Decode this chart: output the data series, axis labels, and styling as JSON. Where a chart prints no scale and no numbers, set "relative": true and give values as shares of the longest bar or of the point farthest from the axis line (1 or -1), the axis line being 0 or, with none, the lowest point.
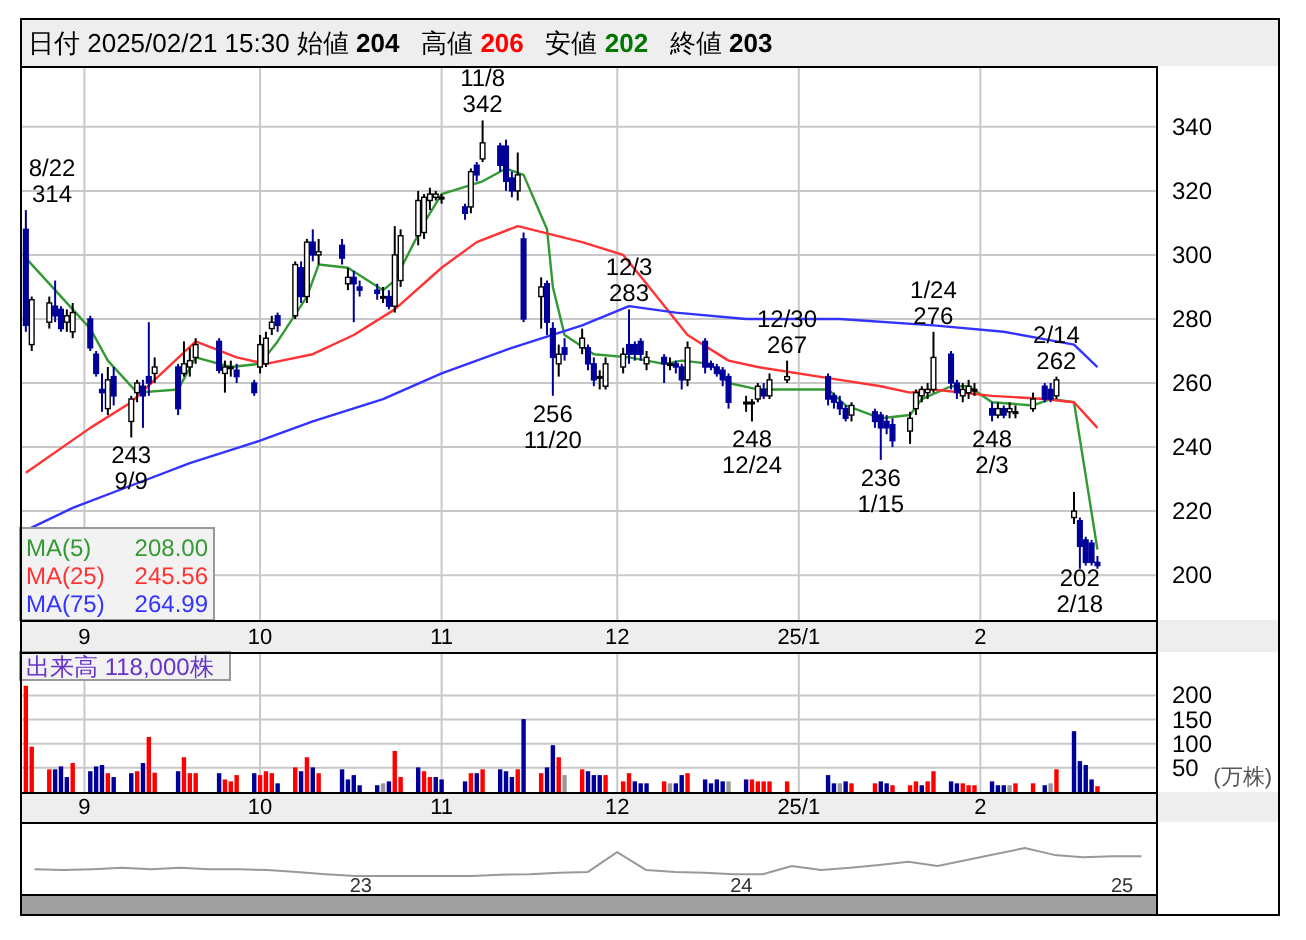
{
  "chart_data": [
    {
      "type": "candlestick",
      "title": "日付 2025/02/21 15:30 始値 **204**   高値 **206**   安値 **202**   終値 **203**",
      "x": [
        "2024-08-22",
        "2024-08-23",
        "2024-08-26",
        "2024-08-27",
        "2024-08-28",
        "2024-08-29",
        "2024-08-30",
        "2024-09-02",
        "2024-09-03",
        "2024-09-04",
        "2024-09-05",
        "2024-09-06",
        "2024-09-09",
        "2024-09-10",
        "2024-09-11",
        "2024-09-12",
        "2024-09-13",
        "2024-09-17",
        "2024-09-18",
        "2024-09-19",
        "2024-09-20",
        "2024-09-24",
        "2024-09-25",
        "2024-09-26",
        "2024-09-27",
        "2024-09-30",
        "2024-10-01",
        "2024-10-02",
        "2024-10-03",
        "2024-10-04",
        "2024-10-07",
        "2024-10-08",
        "2024-10-09",
        "2024-10-10",
        "2024-10-11",
        "2024-10-15",
        "2024-10-16",
        "2024-10-17",
        "2024-10-18",
        "2024-10-21",
        "2024-10-22",
        "2024-10-23",
        "2024-10-24",
        "2024-10-25",
        "2024-10-28",
        "2024-10-29",
        "2024-10-30",
        "2024-10-31",
        "2024-11-01",
        "2024-11-05",
        "2024-11-06",
        "2024-11-07",
        "2024-11-08",
        "2024-11-11",
        "2024-11-12",
        "2024-11-13",
        "2024-11-14",
        "2024-11-15",
        "2024-11-18",
        "2024-11-19",
        "2024-11-20",
        "2024-11-21",
        "2024-11-22",
        "2024-11-25",
        "2024-11-26",
        "2024-11-27",
        "2024-11-28",
        "2024-11-29",
        "2024-12-02",
        "2024-12-03",
        "2024-12-04",
        "2024-12-05",
        "2024-12-06",
        "2024-12-09",
        "2024-12-10",
        "2024-12-11",
        "2024-12-12",
        "2024-12-13",
        "2024-12-16",
        "2024-12-17",
        "2024-12-18",
        "2024-12-19",
        "2024-12-20",
        "2024-12-23",
        "2024-12-24",
        "2024-12-25",
        "2024-12-26",
        "2024-12-27",
        "2024-12-30",
        "2025-01-06",
        "2025-01-07",
        "2025-01-08",
        "2025-01-09",
        "2025-01-10",
        "2025-01-14",
        "2025-01-15",
        "2025-01-16",
        "2025-01-17",
        "2025-01-20",
        "2025-01-21",
        "2025-01-22",
        "2025-01-23",
        "2025-01-24",
        "2025-01-27",
        "2025-01-28",
        "2025-01-29",
        "2025-01-30",
        "2025-01-31",
        "2025-02-03",
        "2025-02-04",
        "2025-02-05",
        "2025-02-06",
        "2025-02-07",
        "2025-02-10",
        "2025-02-12",
        "2025-02-13",
        "2025-02-14",
        "2025-02-17",
        "2025-02-18",
        "2025-02-19",
        "2025-02-20",
        "2025-02-21"
      ],
      "ohlc": [
        [
          308,
          314,
          276,
          278
        ],
        [
          272,
          287,
          270,
          286
        ],
        [
          279,
          287,
          277,
          285
        ],
        [
          284,
          292,
          279,
          281
        ],
        [
          283,
          284,
          276,
          277
        ],
        [
          279,
          283,
          276,
          281
        ],
        [
          276,
          285,
          274,
          282
        ],
        [
          280,
          281,
          270,
          271
        ],
        [
          269,
          270,
          262,
          263
        ],
        [
          258,
          263,
          251,
          257
        ],
        [
          252,
          265,
          250,
          261
        ],
        [
          262,
          265,
          253,
          256
        ],
        [
          248,
          256,
          243,
          255
        ],
        [
          257,
          261,
          254,
          260
        ],
        [
          259,
          261,
          246,
          256
        ],
        [
          262,
          279,
          256,
          260
        ],
        [
          263,
          268,
          260,
          265
        ],
        [
          265,
          266,
          250,
          252
        ],
        [
          263,
          273,
          262,
          266
        ],
        [
          265,
          271,
          262,
          267
        ],
        [
          268,
          274,
          266,
          272
        ],
        [
          273,
          274,
          263,
          264
        ],
        [
          263,
          267,
          257,
          265
        ],
        [
          265,
          267,
          262,
          265
        ],
        [
          264,
          266,
          260,
          262
        ],
        [
          260,
          261,
          256,
          257
        ],
        [
          265,
          275,
          263,
          272
        ],
        [
          266,
          276,
          265,
          274
        ],
        [
          277,
          281,
          275,
          279
        ],
        [
          281,
          282,
          276,
          278
        ],
        [
          281,
          298,
          280,
          297
        ],
        [
          296,
          298,
          285,
          287
        ],
        [
          287,
          305,
          285,
          304
        ],
        [
          304,
          308,
          298,
          300
        ],
        [
          300,
          305,
          297,
          301
        ],
        [
          303,
          305,
          297,
          299
        ],
        [
          291,
          296,
          289,
          293
        ],
        [
          293,
          295,
          279,
          291
        ],
        [
          290,
          292,
          287,
          289
        ],
        [
          289,
          291,
          286,
          288
        ],
        [
          287,
          290,
          285,
          287
        ],
        [
          287,
          289,
          283,
          284
        ],
        [
          284,
          309,
          282,
          300
        ],
        [
          292,
          308,
          290,
          306
        ],
        [
          306,
          320,
          303,
          317
        ],
        [
          307,
          319,
          305,
          318
        ],
        [
          317,
          321,
          314,
          319
        ],
        [
          318,
          320,
          317,
          319
        ],
        [
          318,
          319,
          316,
          318
        ],
        [
          315,
          316,
          311,
          313
        ],
        [
          315,
          327,
          313,
          326
        ],
        [
          328,
          329,
          323,
          325
        ],
        [
          330,
          342,
          329,
          335
        ],
        [
          334,
          335,
          326,
          328
        ],
        [
          334,
          336,
          320,
          323
        ],
        [
          324,
          326,
          318,
          320
        ],
        [
          320,
          332,
          317,
          325
        ],
        [
          305,
          307,
          279,
          280
        ],
        [
          287,
          293,
          277,
          290
        ],
        [
          291,
          292,
          275,
          279
        ],
        [
          277,
          279,
          256,
          268
        ],
        [
          266,
          272,
          262,
          269
        ],
        [
          271,
          274,
          267,
          269
        ],
        [
          271,
          277,
          269,
          274
        ],
        [
          271,
          272,
          264,
          266
        ],
        [
          266,
          268,
          259,
          261
        ],
        [
          262,
          264,
          258,
          262
        ],
        [
          259,
          268,
          258,
          266
        ],
        [
          265,
          271,
          263,
          269
        ],
        [
          272,
          283,
          266,
          269
        ],
        [
          272,
          273,
          267,
          269
        ],
        [
          273,
          274,
          267,
          269
        ],
        [
          266,
          270,
          264,
          268
        ],
        [
          268,
          269,
          260,
          266
        ],
        [
          266,
          268,
          264,
          266
        ],
        [
          266,
          267,
          263,
          265
        ],
        [
          265,
          266,
          258,
          261
        ],
        [
          261,
          273,
          259,
          271
        ],
        [
          273,
          274,
          263,
          265
        ],
        [
          266,
          267,
          264,
          265
        ],
        [
          265,
          266,
          262,
          263
        ],
        [
          264,
          265,
          259,
          261
        ],
        [
          262,
          263,
          252,
          254
        ],
        [
          254,
          256,
          251,
          254
        ],
        [
          254,
          255,
          248,
          254
        ],
        [
          255,
          260,
          254,
          259
        ],
        [
          258,
          260,
          255,
          256
        ],
        [
          256,
          263,
          255,
          261
        ],
        [
          261,
          267,
          260,
          262
        ],
        [
          262,
          263,
          253,
          255
        ],
        [
          256,
          257,
          252,
          254
        ],
        [
          254,
          256,
          250,
          252
        ],
        [
          252,
          253,
          248,
          249
        ],
        [
          250,
          254,
          248,
          253
        ],
        [
          251,
          252,
          246,
          248
        ],
        [
          250,
          251,
          236,
          246
        ],
        [
          248,
          250,
          244,
          246
        ],
        [
          247,
          249,
          240,
          242
        ],
        [
          245,
          251,
          241,
          249
        ],
        [
          252,
          258,
          250,
          257
        ],
        [
          256,
          259,
          254,
          258
        ],
        [
          257,
          260,
          255,
          258
        ],
        [
          258,
          276,
          257,
          268
        ],
        [
          269,
          270,
          258,
          260
        ],
        [
          260,
          261,
          255,
          257
        ],
        [
          256,
          260,
          254,
          258
        ],
        [
          257,
          261,
          255,
          259
        ],
        [
          258,
          260,
          256,
          258
        ],
        [
          252,
          254,
          248,
          250
        ],
        [
          250,
          254,
          249,
          252
        ],
        [
          252,
          253,
          249,
          250
        ],
        [
          251,
          254,
          249,
          252
        ],
        [
          251,
          253,
          249,
          251
        ],
        [
          252,
          257,
          251,
          255
        ],
        [
          259,
          260,
          254,
          255
        ],
        [
          258,
          260,
          254,
          255
        ],
        [
          256,
          262,
          255,
          261
        ],
        [
          218,
          226,
          216,
          220
        ],
        [
          217,
          218,
          202,
          209
        ],
        [
          211,
          212,
          203,
          204
        ],
        [
          210,
          211,
          203,
          204
        ],
        [
          204,
          206,
          202,
          203
        ]
      ],
      "series": [
        {
          "name": "MA(5)",
          "type": "line",
          "color": "#339933",
          "x": [
            "2024-08-22",
            "2024-08-27",
            "2024-09-02",
            "2024-09-05",
            "2024-09-10",
            "2024-09-17",
            "2024-09-20",
            "2024-09-26",
            "2024-10-01",
            "2024-10-04",
            "2024-10-09",
            "2024-10-11",
            "2024-10-16",
            "2024-10-22",
            "2024-10-24",
            "2024-10-29",
            "2024-11-01",
            "2024-11-08",
            "2024-11-12",
            "2024-11-15",
            "2024-11-19",
            "2024-11-20",
            "2024-11-22",
            "2024-11-27",
            "2024-12-03",
            "2024-12-09",
            "2024-12-12",
            "2024-12-17",
            "2024-12-20",
            "2024-12-25",
            "2025-01-06",
            "2025-01-09",
            "2025-01-15",
            "2025-01-20",
            "2025-01-22",
            "2025-01-27",
            "2025-01-30",
            "2025-02-03",
            "2025-02-10",
            "2025-02-13",
            "2025-02-17",
            "2025-02-19",
            "2025-02-21"
          ],
          "values": [
            299,
            289,
            277,
            267,
            257,
            258,
            268,
            265,
            266,
            273,
            287,
            297,
            296,
            289,
            292,
            310,
            319,
            323,
            327,
            325,
            308,
            290,
            275,
            269,
            268,
            266,
            267,
            266,
            260,
            258,
            258,
            253,
            249,
            250,
            255,
            259,
            259,
            254,
            253,
            255,
            254,
            231,
            208
          ]
        },
        {
          "name": "MA(25)",
          "type": "line",
          "color": "#ff3333",
          "x": [
            "2024-08-22",
            "2024-09-02",
            "2024-09-09",
            "2024-09-13",
            "2024-09-20",
            "2024-09-27",
            "2024-10-02",
            "2024-10-10",
            "2024-10-17",
            "2024-10-24",
            "2024-11-01",
            "2024-11-07",
            "2024-11-14",
            "2024-11-25",
            "2024-12-02",
            "2024-12-06",
            "2024-12-13",
            "2024-12-20",
            "2024-12-25",
            "2025-01-08",
            "2025-01-15",
            "2025-01-20",
            "2025-01-24",
            "2025-02-03",
            "2025-02-12",
            "2025-02-17",
            "2025-02-21"
          ],
          "values": [
            232,
            246,
            254,
            261,
            273,
            268,
            266,
            269,
            275,
            283,
            296,
            304,
            309,
            304,
            300,
            291,
            275,
            267,
            265,
            261,
            259,
            257,
            258,
            256,
            255,
            254,
            246
          ]
        },
        {
          "name": "MA(75)",
          "type": "line",
          "color": "#3333ff",
          "x": [
            "2024-08-22",
            "2024-08-30",
            "2024-09-09",
            "2024-09-19",
            "2024-10-01",
            "2024-10-10",
            "2024-10-22",
            "2024-11-01",
            "2024-11-13",
            "2024-11-25",
            "2024-12-03",
            "2024-12-11",
            "2024-12-23",
            "2025-01-08",
            "2025-01-24",
            "2025-02-05",
            "2025-02-17",
            "2025-02-21"
          ],
          "values": [
            214,
            221,
            228,
            235,
            242,
            248,
            255,
            263,
            271,
            278,
            284,
            282,
            280,
            280,
            278,
            276,
            272,
            265
          ]
        }
      ],
      "xlim": [
        "2024-08-21",
        "2025-03-03"
      ],
      "xticks": [
        {
          "value": "2024-09-01",
          "label": "9"
        },
        {
          "value": "2024-10-01",
          "label": "10"
        },
        {
          "value": "2024-11-01",
          "label": "11"
        },
        {
          "value": "2024-12-01",
          "label": "12"
        },
        {
          "value": "2025-01-01",
          "label": "25/1"
        },
        {
          "value": "2025-02-01",
          "label": "2"
        }
      ],
      "ylim": [
        186,
        359
      ],
      "yticks": [
        200,
        220,
        240,
        260,
        280,
        300,
        320,
        340
      ],
      "grid": true,
      "legend": "bottom left",
      "annotations": [
        {
          "text": "8/22 314",
          "x": "2024-08-22",
          "y": 314
        },
        {
          "text": "243 9/9",
          "x": "2024-09-09",
          "y": 243
        },
        {
          "text": "11/8 342",
          "x": "2024-11-08",
          "y": 342
        },
        {
          "text": "256 11/20",
          "x": "2024-11-20",
          "y": 256
        },
        {
          "text": "12/3 283",
          "x": "2024-12-03",
          "y": 283
        },
        {
          "text": "248 12/24",
          "x": "2024-12-24",
          "y": 248
        },
        {
          "text": "12/30 267",
          "x": "2024-12-30",
          "y": 267
        },
        {
          "text": "236 1/15",
          "x": "2025-01-15",
          "y": 236
        },
        {
          "text": "1/24 276",
          "x": "2025-01-24",
          "y": 276
        },
        {
          "text": "248 2/3",
          "x": "2025-02-03",
          "y": 248
        },
        {
          "text": "2/14 262",
          "x": "2025-02-14",
          "y": 262
        },
        {
          "text": "202 2/18",
          "x": "2025-02-18",
          "y": 202
        },
        "208.00",
        "245.56",
        "264.99"
      ]
    },
    {
      "type": "bar",
      "title": "出来高 118,000株",
      "ylabel": "(万株)",
      "x": [
        "2024-08-22",
        "2024-08-23",
        "2024-08-26",
        "2024-08-27",
        "2024-08-28",
        "2024-08-29",
        "2024-08-30",
        "2024-09-02",
        "2024-09-03",
        "2024-09-04",
        "2024-09-05",
        "2024-09-06",
        "2024-09-09",
        "2024-09-10",
        "2024-09-11",
        "2024-09-12",
        "2024-09-13",
        "2024-09-17",
        "2024-09-18",
        "2024-09-19",
        "2024-09-20",
        "2024-09-24",
        "2024-09-25",
        "2024-09-26",
        "2024-09-27",
        "2024-09-30",
        "2024-10-01",
        "2024-10-02",
        "2024-10-03",
        "2024-10-04",
        "2024-10-07",
        "2024-10-08",
        "2024-10-09",
        "2024-10-10",
        "2024-10-11",
        "2024-10-15",
        "2024-10-16",
        "2024-10-17",
        "2024-10-18",
        "2024-10-21",
        "2024-10-22",
        "2024-10-23",
        "2024-10-24",
        "2024-10-25",
        "2024-10-28",
        "2024-10-29",
        "2024-10-30",
        "2024-10-31",
        "2024-11-01",
        "2024-11-05",
        "2024-11-06",
        "2024-11-07",
        "2024-11-08",
        "2024-11-11",
        "2024-11-12",
        "2024-11-13",
        "2024-11-14",
        "2024-11-15",
        "2024-11-18",
        "2024-11-19",
        "2024-11-20",
        "2024-11-21",
        "2024-11-22",
        "2024-11-25",
        "2024-11-26",
        "2024-11-27",
        "2024-11-28",
        "2024-11-29",
        "2024-12-02",
        "2024-12-03",
        "2024-12-04",
        "2024-12-05",
        "2024-12-06",
        "2024-12-09",
        "2024-12-10",
        "2024-12-11",
        "2024-12-12",
        "2024-12-13",
        "2024-12-16",
        "2024-12-17",
        "2024-12-18",
        "2024-12-19",
        "2024-12-20",
        "2024-12-23",
        "2024-12-24",
        "2024-12-25",
        "2024-12-26",
        "2024-12-27",
        "2024-12-30",
        "2025-01-06",
        "2025-01-07",
        "2025-01-08",
        "2025-01-09",
        "2025-01-10",
        "2025-01-14",
        "2025-01-15",
        "2025-01-16",
        "2025-01-17",
        "2025-01-20",
        "2025-01-21",
        "2025-01-22",
        "2025-01-23",
        "2025-01-24",
        "2025-01-27",
        "2025-01-28",
        "2025-01-29",
        "2025-01-30",
        "2025-01-31",
        "2025-02-03",
        "2025-02-04",
        "2025-02-05",
        "2025-02-06",
        "2025-02-07",
        "2025-02-10",
        "2025-02-12",
        "2025-02-13",
        "2025-02-14",
        "2025-02-17",
        "2025-02-18",
        "2025-02-19",
        "2025-02-20",
        "2025-02-21"
      ],
      "values": [
        220,
        94,
        47,
        47,
        53,
        31,
        60,
        43,
        53,
        56,
        39,
        31,
        39,
        43,
        60,
        114,
        40,
        43,
        72,
        39,
        39,
        39,
        26,
        22,
        35,
        39,
        35,
        43,
        39,
        18,
        51,
        43,
        72,
        51,
        39,
        47,
        26,
        35,
        14,
        14,
        18,
        22,
        85,
        31,
        51,
        43,
        31,
        31,
        26,
        22,
        39,
        39,
        47,
        47,
        43,
        31,
        47,
        151,
        39,
        51,
        97,
        72,
        35,
        47,
        43,
        35,
        35,
        35,
        22,
        39,
        22,
        18,
        18,
        22,
        18,
        18,
        35,
        39,
        26,
        18,
        26,
        22,
        22,
        26,
        26,
        22,
        22,
        22,
        22,
        35,
        18,
        18,
        22,
        18,
        18,
        22,
        18,
        14,
        14,
        22,
        14,
        22,
        43,
        22,
        18,
        18,
        14,
        14,
        22,
        14,
        14,
        14,
        18,
        18,
        14,
        18,
        47,
        126,
        64,
        56,
        26,
        12
      ],
      "colors": [
        "#ff0000",
        "#ff0000",
        "#ff0000",
        "#000099",
        "#000099",
        "#000099",
        "#ff0000",
        "#000099",
        "#000099",
        "#000099",
        "#ff0000",
        "#000099",
        "#000099",
        "#ff0000",
        "#000099",
        "#ff0000",
        "#ff0000",
        "#000099",
        "#ff0000",
        "#ff0000",
        "#ff0000",
        "#000099",
        "#ff0000",
        "#ff0000",
        "#ff0000",
        "#000099",
        "#ff0000",
        "#ff0000",
        "#ff0000",
        "#000099",
        "#ff0000",
        "#000099",
        "#ff0000",
        "#000099",
        "#ff0000",
        "#000099",
        "#000099",
        "#000099",
        "#000099",
        "#000099",
        "#999999",
        "#000099",
        "#ff0000",
        "#ff0000",
        "#000099",
        "#ff0000",
        "#ff0000",
        "#000099",
        "#000099",
        "#000099",
        "#ff0000",
        "#000099",
        "#ff0000",
        "#000099",
        "#000099",
        "#000099",
        "#ff0000",
        "#000099",
        "#ff0000",
        "#000099",
        "#000099",
        "#ff0000",
        "#999999",
        "#ff0000",
        "#000099",
        "#000099",
        "#000099",
        "#ff0000",
        "#ff0000",
        "#ff0000",
        "#000099",
        "#000099",
        "#000099",
        "#ff0000",
        "#999999",
        "#000099",
        "#000099",
        "#ff0000",
        "#000099",
        "#000099",
        "#000099",
        "#000099",
        "#999999",
        "#000099",
        "#ff0000",
        "#ff0000",
        "#ff0000",
        "#ff0000",
        "#ff0000",
        "#000099",
        "#000099",
        "#999999",
        "#000099",
        "#ff0000",
        "#ff0000",
        "#000099",
        "#000099",
        "#ff0000",
        "#ff0000",
        "#ff0000",
        "#000099",
        "#ff0000",
        "#ff0000",
        "#000099",
        "#000099",
        "#ff0000",
        "#ff0000",
        "#ff0000",
        "#000099",
        "#000099",
        "#000099",
        "#999999",
        "#ff0000",
        "#ff0000",
        "#000099",
        "#999999",
        "#ff0000",
        "#000099",
        "#000099",
        "#000099",
        "#000099",
        "#ff0000"
      ],
      "xlim": [
        "2024-08-21",
        "2025-03-03"
      ],
      "xticks": [
        {
          "value": "2024-09-01",
          "label": "9"
        },
        {
          "value": "2024-10-01",
          "label": "10"
        },
        {
          "value": "2024-11-01",
          "label": "11"
        },
        {
          "value": "2024-12-01",
          "label": "12"
        },
        {
          "value": "2025-01-01",
          "label": "25/1"
        },
        {
          "value": "2025-02-01",
          "label": "2"
        }
      ],
      "ylim": [
        0,
        290
      ],
      "yticks": [
        50,
        100,
        150,
        200
      ],
      "grid": true
    },
    {
      "type": "line",
      "relative": true,
      "color": "#999999",
      "categories": [
        null,
        null,
        null,
        null,
        null,
        null,
        null,
        null,
        null,
        null,
        null,
        null,
        null,
        null,
        null,
        null,
        null,
        null,
        null,
        null,
        null,
        null,
        null,
        null,
        null,
        null,
        null,
        null,
        null,
        null,
        null,
        null,
        null,
        null,
        null,
        null,
        null,
        null,
        null
      ],
      "values": [
        0.54,
        0.52,
        0.54,
        0.57,
        0.54,
        0.57,
        0.54,
        0.54,
        0.52,
        0.48,
        0.43,
        0.39,
        0.39,
        0.39,
        0.39,
        0.39,
        0.42,
        0.43,
        0.46,
        0.48,
        0.91,
        0.52,
        0.48,
        0.46,
        0.43,
        0.43,
        0.61,
        0.52,
        0.57,
        0.63,
        0.7,
        0.61,
        0.74,
        0.87,
        1,
        0.85,
        0.8,
        0.82,
        0.82
      ],
      "annotations": [
        "23",
        "24",
        "25"
      ]
    }
  ]
}
